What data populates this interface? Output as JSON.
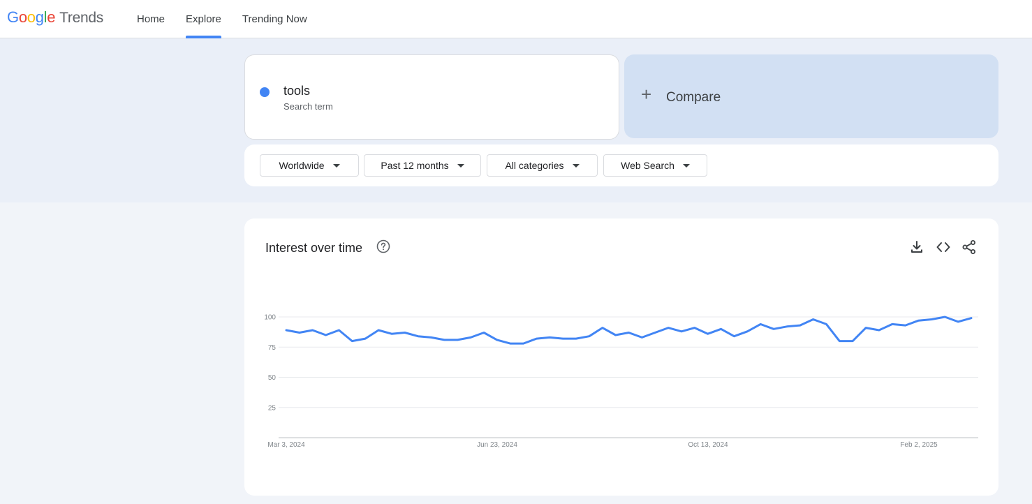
{
  "header": {
    "logo_text": "Google",
    "product": "Trends",
    "tabs": [
      {
        "label": "Home",
        "active": false
      },
      {
        "label": "Explore",
        "active": true
      },
      {
        "label": "Trending Now",
        "active": false
      }
    ]
  },
  "search_term": {
    "term": "tools",
    "sublabel": "Search term",
    "color": "#4285f4"
  },
  "compare": {
    "label": "Compare"
  },
  "filters": {
    "region": "Worldwide",
    "time": "Past 12 months",
    "category": "All categories",
    "property": "Web Search"
  },
  "chart_card": {
    "title": "Interest over time"
  },
  "chart_data": {
    "type": "line",
    "ylim": [
      0,
      100
    ],
    "y_ticks": [
      "100",
      "75",
      "50",
      "25"
    ],
    "x_tick_labels": [
      "Mar 3, 2024",
      "Jun 23, 2024",
      "Oct 13, 2024",
      "Feb 2, 2025"
    ],
    "grid": true,
    "series": [
      {
        "color": "#4285f4",
        "values": [
          89,
          87,
          89,
          85,
          89,
          80,
          82,
          89,
          86,
          87,
          84,
          83,
          81,
          81,
          83,
          87,
          81,
          78,
          78,
          82,
          83,
          82,
          82,
          84,
          91,
          85,
          87,
          83,
          87,
          91,
          88,
          91,
          86,
          90,
          84,
          88,
          94,
          90,
          92,
          93,
          98,
          94,
          80,
          80,
          91,
          89,
          94,
          93,
          97,
          98,
          100,
          96,
          99
        ]
      }
    ]
  }
}
